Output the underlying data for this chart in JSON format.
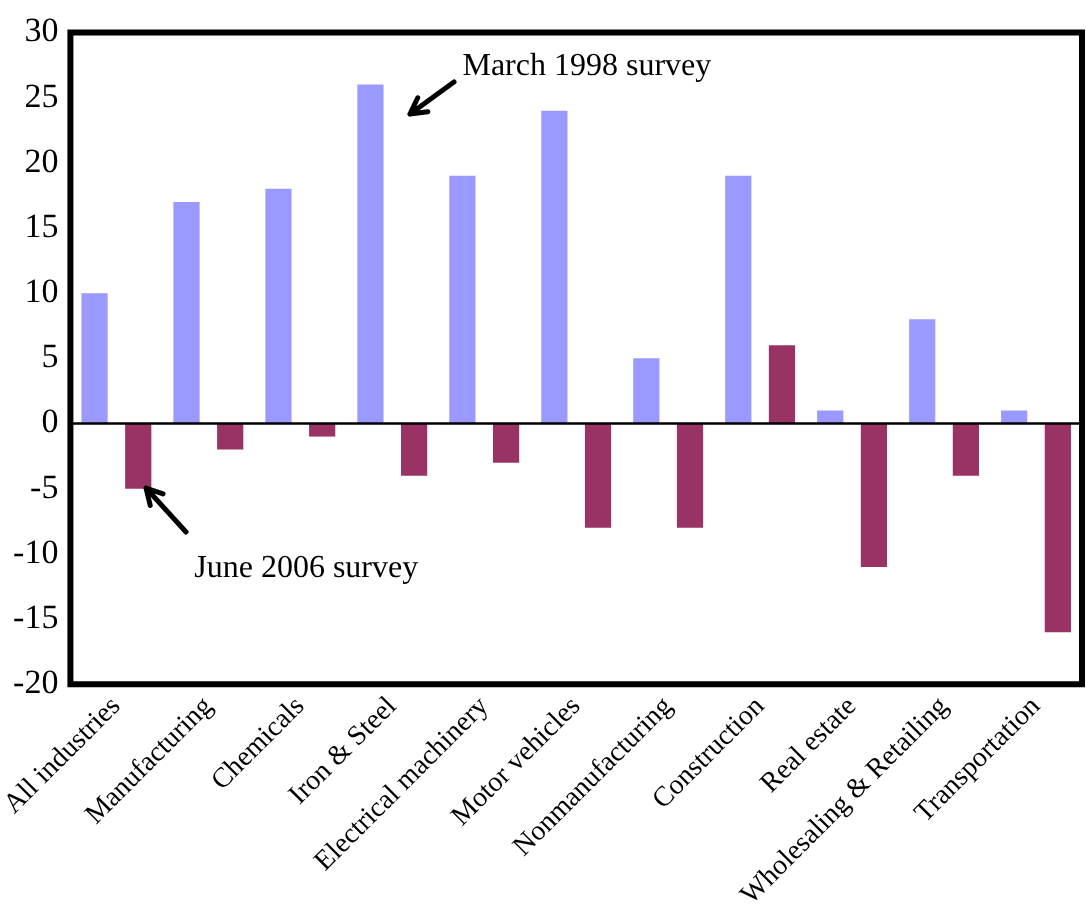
{
  "chart_data": {
    "type": "bar",
    "categories": [
      "All industries",
      "Manufacturing",
      "Chemicals",
      "Iron & Steel",
      "Electrical machinery",
      "Motor vehicles",
      "Nonmanufacturing",
      "Construction",
      "Real estate",
      "Wholesaling & Retailing",
      "Transportation"
    ],
    "series": [
      {
        "name": "March 1998 survey",
        "color": "#9999ff",
        "values": [
          10,
          17,
          18,
          26,
          19,
          24,
          5,
          19,
          1,
          8,
          1
        ]
      },
      {
        "name": "June 2006 survey",
        "color": "#993366",
        "values": [
          -5,
          -2,
          -1,
          -4,
          -3,
          -8,
          -8,
          6,
          -11,
          -4,
          -16
        ]
      }
    ],
    "ref_lines": [
      {
        "axis": "y",
        "value": 0,
        "color": "#000000"
      }
    ],
    "ylim": [
      -20,
      30
    ],
    "yticks": [
      -20,
      -15,
      -10,
      -5,
      0,
      5,
      10,
      15,
      20,
      25,
      30
    ],
    "grid": false,
    "legend": false
  }
}
